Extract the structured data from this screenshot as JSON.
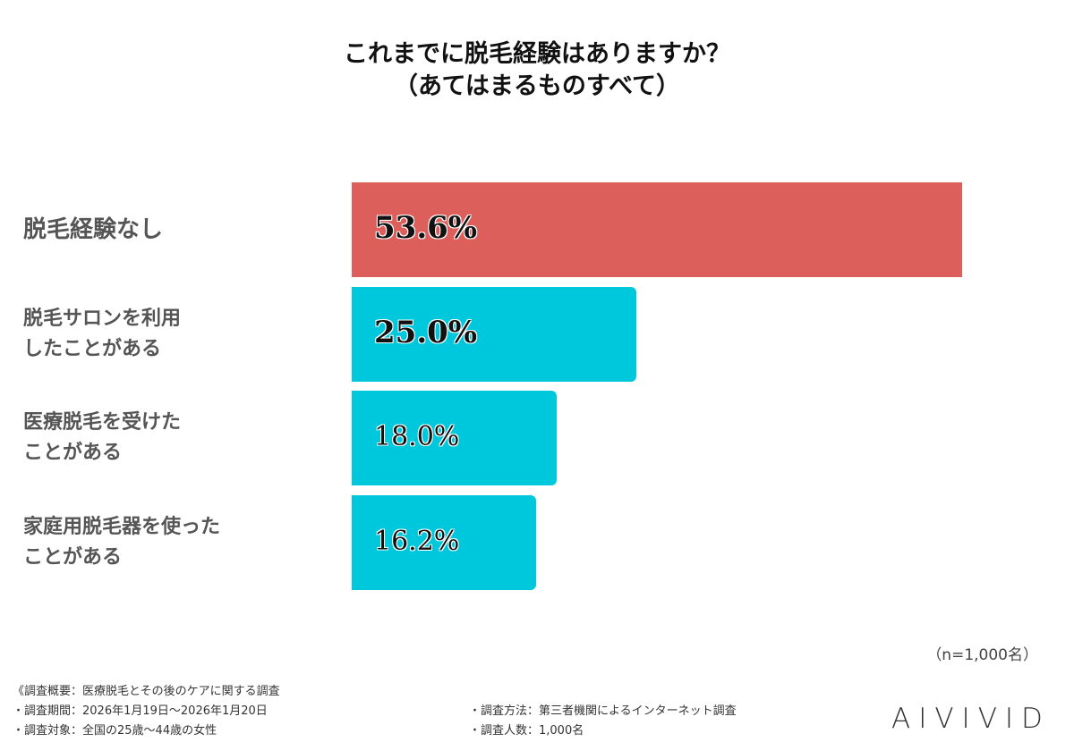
{
  "chart_data": {
    "type": "bar",
    "orientation": "horizontal",
    "title": "これまでに脱毛経験はありますか？",
    "subtitle": "（あてはまるものすべて）",
    "categories": [
      [
        "脱毛経験なし"
      ],
      [
        "脱毛サロンを利用",
        "したことがある"
      ],
      [
        "医療脱毛を受けた",
        "ことがある"
      ],
      [
        "家庭用脱毛器を使った",
        "ことがある"
      ]
    ],
    "values": [
      53.6,
      25.0,
      18.0,
      16.2
    ],
    "value_labels": [
      "53.6%",
      "25.0%",
      "18.0%",
      "16.2%"
    ],
    "colors": [
      "#dc5f5b",
      "#00c8dc",
      "#00c8dc",
      "#00c8dc"
    ],
    "unit": "%",
    "grid": false,
    "legend": "none"
  },
  "sample_note": "（n=1,000名）",
  "footer": {
    "overview": "《調査概要：医療脱毛とその後のケアに関する調査",
    "period": "・調査期間：2026年1月19日～2026年1月20日",
    "target": "・調査対象：全国の25歳～44歳の女性",
    "method": "・調査方法：第三者機関によるインターネット調査",
    "count": "・調査人数：1,000名"
  },
  "logo": "AIVIVID"
}
